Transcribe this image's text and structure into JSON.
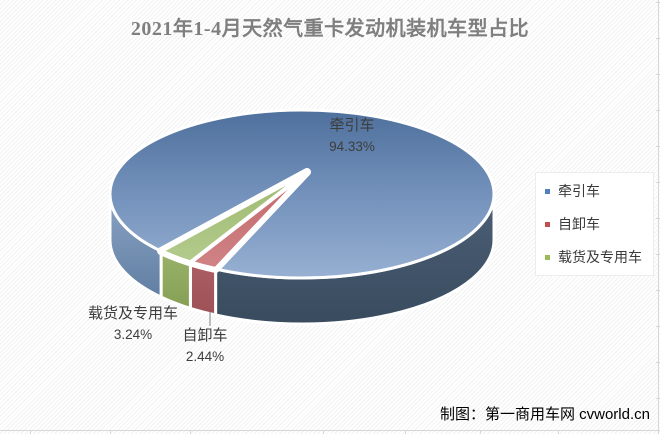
{
  "title": "2021年1-4月天然气重卡发动机装机车型占比",
  "attribution": "制图：第一商用车网 cvworld.cn",
  "legend": {
    "position": "right",
    "items": [
      {
        "label": "牵引车",
        "color": "#4f81bd"
      },
      {
        "label": "自卸车",
        "color": "#c0504d"
      },
      {
        "label": "载货及专用车",
        "color": "#9bbb59"
      }
    ]
  },
  "chart_data": {
    "type": "pie",
    "style": "3d-pie",
    "title": "2021年1-4月天然气重卡发动机装机车型占比",
    "categories": [
      "牵引车",
      "自卸车",
      "载货及专用车"
    ],
    "values": [
      94.33,
      2.44,
      3.24
    ],
    "unit": "%",
    "legend_position": "right",
    "start_angle_deg": 227.2,
    "slices": [
      {
        "label": "牵引车",
        "value": 94.33,
        "pct_label": "94.33%",
        "top": [
          "#4e709c",
          "#7391bb",
          "#97b0d2"
        ],
        "side": [
          "#4c5f76",
          "#394b5e"
        ],
        "side_left": [
          "#8aa3c4",
          "#617fa3"
        ]
      },
      {
        "label": "自卸车",
        "value": 2.44,
        "pct_label": "2.44%",
        "top": [
          "#c2686c",
          "#d08385"
        ],
        "side": [
          "#ac5e63",
          "#9d5156"
        ]
      },
      {
        "label": "载货及专用车",
        "value": 3.24,
        "pct_label": "3.24%",
        "top": [
          "#9dba70",
          "#b3ca8c"
        ],
        "side": [
          "#9ab26b",
          "#85a055"
        ]
      }
    ]
  }
}
